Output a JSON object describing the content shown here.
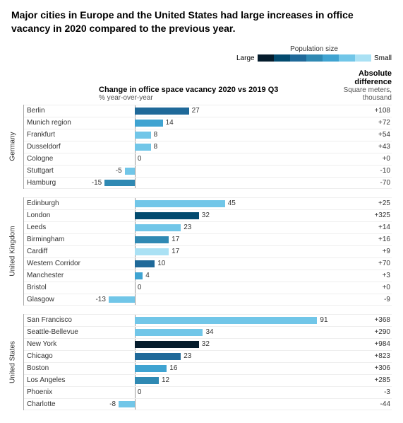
{
  "title": "Major cities in Europe and the United States had large increases in office vacancy in 2020 compared to the previous year.",
  "legend": {
    "label": "Population size",
    "left": "Large",
    "right": "Small",
    "colors": [
      "#051c2c",
      "#034b6f",
      "#1f6999",
      "#2f89b3",
      "#3fa3d1",
      "#71c6e8",
      "#aae1f4"
    ]
  },
  "headers": {
    "bars_title": "Change in office space vacancy 2020 vs 2019 Q3",
    "bars_sub": "% year-over-year",
    "diff_title": "Absolute difference",
    "diff_sub": "Square meters, thousand"
  },
  "bar_config": {
    "min": -20,
    "max": 100,
    "zero_pct": 16.67,
    "label_gap": 4
  },
  "groups": [
    {
      "label": "Germany",
      "rows": [
        {
          "city": "Berlin",
          "value": 27,
          "diff": "+108",
          "color": "#1f6999"
        },
        {
          "city": "Munich region",
          "value": 14,
          "diff": "+72",
          "color": "#3fa3d1"
        },
        {
          "city": "Frankfurt",
          "value": 8,
          "diff": "+54",
          "color": "#71c6e8"
        },
        {
          "city": "Dusseldorf",
          "value": 8,
          "diff": "+43",
          "color": "#71c6e8"
        },
        {
          "city": "Cologne",
          "value": 0,
          "diff": "+0",
          "color": "#71c6e8"
        },
        {
          "city": "Stuttgart",
          "value": -5,
          "diff": "-10",
          "color": "#71c6e8"
        },
        {
          "city": "Hamburg",
          "value": -15,
          "diff": "-70",
          "color": "#2f89b3"
        }
      ]
    },
    {
      "label": "United Kingdom",
      "rows": [
        {
          "city": "Edinburgh",
          "value": 45,
          "diff": "+25",
          "color": "#71c6e8"
        },
        {
          "city": "London",
          "value": 32,
          "diff": "+325",
          "color": "#034b6f"
        },
        {
          "city": "Leeds",
          "value": 23,
          "diff": "+14",
          "color": "#71c6e8"
        },
        {
          "city": "Birmingham",
          "value": 17,
          "diff": "+16",
          "color": "#2f89b3"
        },
        {
          "city": "Cardiff",
          "value": 17,
          "diff": "+9",
          "color": "#aae1f4"
        },
        {
          "city": "Western Corridor",
          "value": 10,
          "diff": "+70",
          "color": "#1f6999"
        },
        {
          "city": "Manchester",
          "value": 4,
          "diff": "+3",
          "color": "#3fa3d1"
        },
        {
          "city": "Bristol",
          "value": 0,
          "diff": "+0",
          "color": "#71c6e8"
        },
        {
          "city": "Glasgow",
          "value": -13,
          "diff": "-9",
          "color": "#71c6e8"
        }
      ]
    },
    {
      "label": "United States",
      "rows": [
        {
          "city": "San Francisco",
          "value": 91,
          "diff": "+368",
          "color": "#71c6e8"
        },
        {
          "city": "Seattle-Bellevue",
          "value": 34,
          "diff": "+290",
          "color": "#71c6e8"
        },
        {
          "city": "New York",
          "value": 32,
          "diff": "+984",
          "color": "#051c2c"
        },
        {
          "city": "Chicago",
          "value": 23,
          "diff": "+823",
          "color": "#1f6999"
        },
        {
          "city": "Boston",
          "value": 16,
          "diff": "+306",
          "color": "#3fa3d1"
        },
        {
          "city": "Los Angeles",
          "value": 12,
          "diff": "+285",
          "color": "#2f89b3"
        },
        {
          "city": "Phoenix",
          "value": 0,
          "diff": "-3",
          "color": "#71c6e8"
        },
        {
          "city": "Charlotte",
          "value": -8,
          "diff": "-44",
          "color": "#71c6e8"
        }
      ]
    }
  ]
}
